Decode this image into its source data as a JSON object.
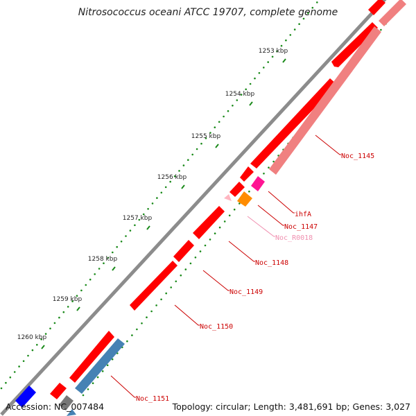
{
  "title": "Nitrosococcus oceani ATCC 19707, complete genome",
  "accession": "Accession: NC_007484",
  "topology": "Topology: circular; Length: 3,481,691 bp; Genes: 3,027",
  "ruler": {
    "ticks": [
      "1253 kbp",
      "1254 kbp",
      "1255 kbp",
      "1256 kbp",
      "1257 kbp",
      "1258 kbp",
      "1259 kbp",
      "1260 kbp"
    ],
    "dot_color": "#1a8a1a"
  },
  "colors": {
    "backbone": "#8c8c8c",
    "cds": "#ff0000",
    "cds_light": "#f08080",
    "trna": "#ff1493",
    "rna_light": "#ffb6c1",
    "orange": "#ff8c00",
    "steel": "#4682b4",
    "blue": "#0000ff",
    "label_red": "#cc0000",
    "label_pink": "#f090b0"
  },
  "labels": [
    {
      "text": "Noc_1145",
      "color": "#cc0000"
    },
    {
      "text": "ihfA",
      "color": "#cc0000"
    },
    {
      "text": "Noc_1147",
      "color": "#cc0000"
    },
    {
      "text": "Noc_R0018",
      "color": "#f090b0"
    },
    {
      "text": "Noc_1148",
      "color": "#cc0000"
    },
    {
      "text": "Noc_1149",
      "color": "#cc0000"
    },
    {
      "text": "Noc_1150",
      "color": "#cc0000"
    },
    {
      "text": "Noc_1151",
      "color": "#cc0000"
    }
  ]
}
